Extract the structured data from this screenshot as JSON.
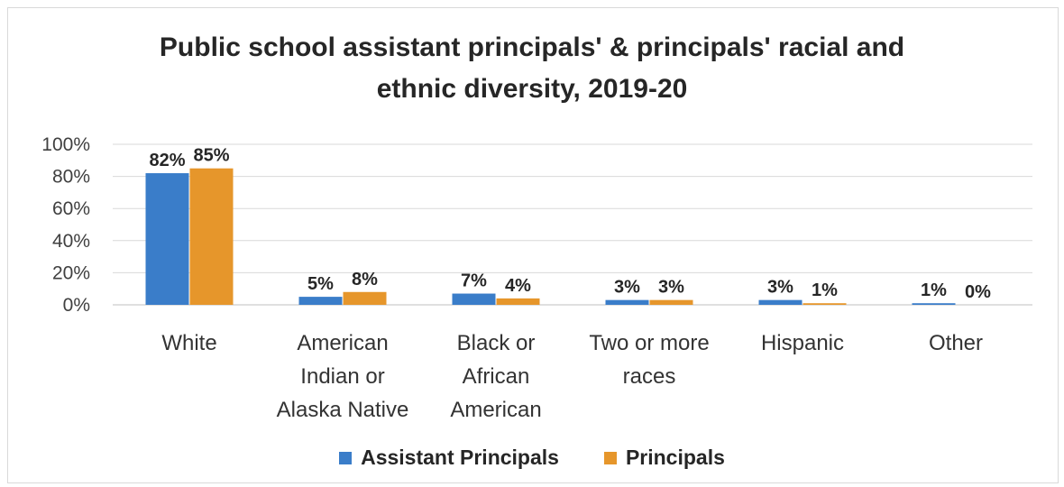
{
  "chart_data": {
    "type": "bar",
    "title": "Public school assistant principals' & principals' racial and\nethnic diversity, 2019-20",
    "categories": [
      [
        "White"
      ],
      [
        "American",
        "Indian or",
        "Alaska Native"
      ],
      [
        "Black or",
        "African",
        "American"
      ],
      [
        "Two or more",
        "races"
      ],
      [
        "Hispanic"
      ],
      [
        "Other"
      ]
    ],
    "series": [
      {
        "name": "Assistant Principals",
        "color": "#3a7dc9",
        "values": [
          82,
          5,
          7,
          3,
          3,
          1
        ],
        "labels": [
          "82%",
          "5%",
          "7%",
          "3%",
          "3%",
          "1%"
        ]
      },
      {
        "name": "Principals",
        "color": "#e6962b",
        "values": [
          85,
          8,
          4,
          3,
          1,
          0
        ],
        "labels": [
          "85%",
          "8%",
          "4%",
          "3%",
          "1%",
          "0%"
        ]
      }
    ],
    "ylim": [
      0,
      100
    ],
    "yticks": [
      "0%",
      "20%",
      "40%",
      "60%",
      "80%",
      "100%"
    ],
    "grid": true,
    "legend_position": "bottom"
  }
}
